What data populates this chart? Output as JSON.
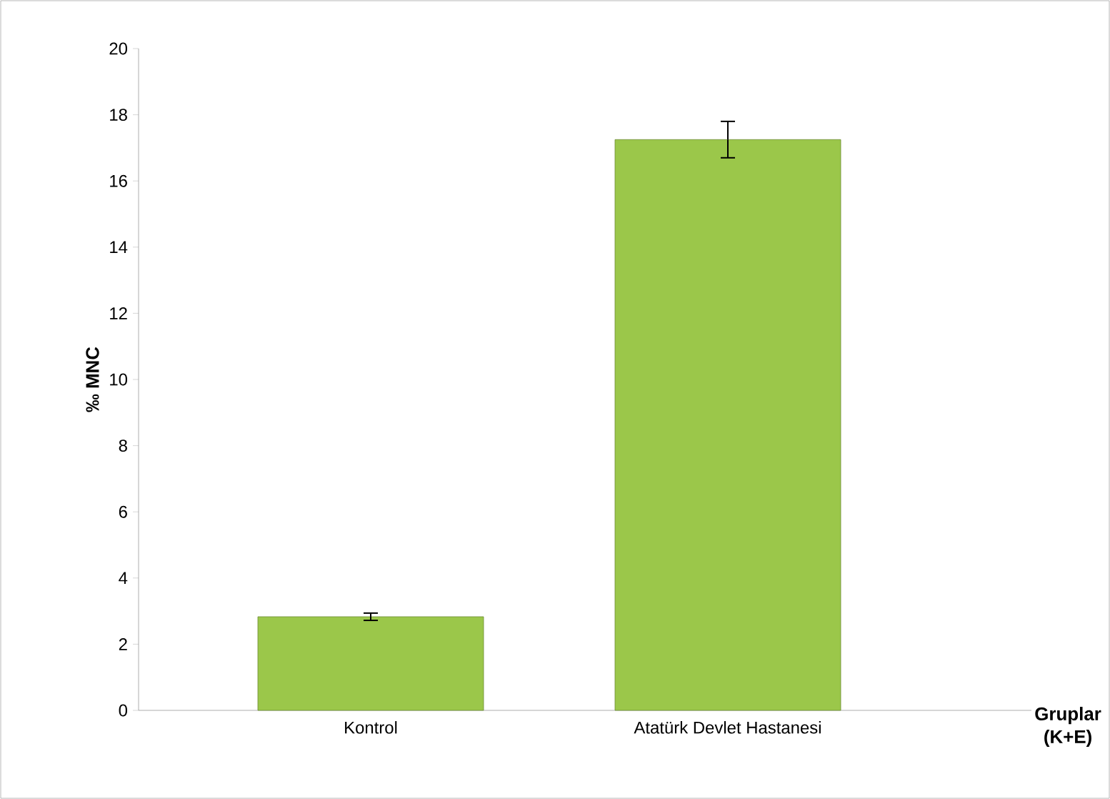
{
  "chart_data": {
    "type": "bar",
    "ylabel": "‰ MNC",
    "xlabel": "Gruplar (K+E)",
    "categories": [
      "Kontrol",
      "Atatürk Devlet Hastanesi"
    ],
    "values": [
      2.83,
      17.25
    ],
    "errors": [
      0.11,
      0.55
    ],
    "color": "#9bc74a",
    "ylim": [
      0,
      20
    ],
    "yticks": [
      0,
      2,
      4,
      6,
      8,
      10,
      12,
      14,
      16,
      18,
      20
    ],
    "grid": false
  }
}
